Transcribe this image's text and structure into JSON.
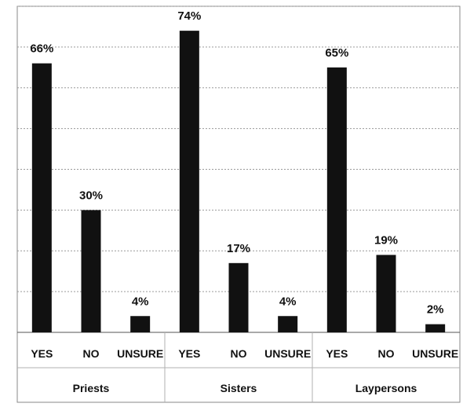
{
  "chart_data": {
    "type": "bar",
    "groups": [
      "Priests",
      "Sisters",
      "Laypersons"
    ],
    "categories": [
      "YES",
      "NO",
      "UNSURE"
    ],
    "values": [
      [
        66,
        30,
        4
      ],
      [
        74,
        17,
        4
      ],
      [
        65,
        19,
        2
      ]
    ],
    "value_labels": [
      [
        "66%",
        "30%",
        "4%"
      ],
      [
        "74%",
        "17%",
        "4%"
      ],
      [
        "65%",
        "19%",
        "2%"
      ]
    ],
    "ylim": [
      0,
      80
    ],
    "grid": true,
    "legend": "none",
    "bar_color": "#111111",
    "grid_color": "#9a9a9a"
  }
}
